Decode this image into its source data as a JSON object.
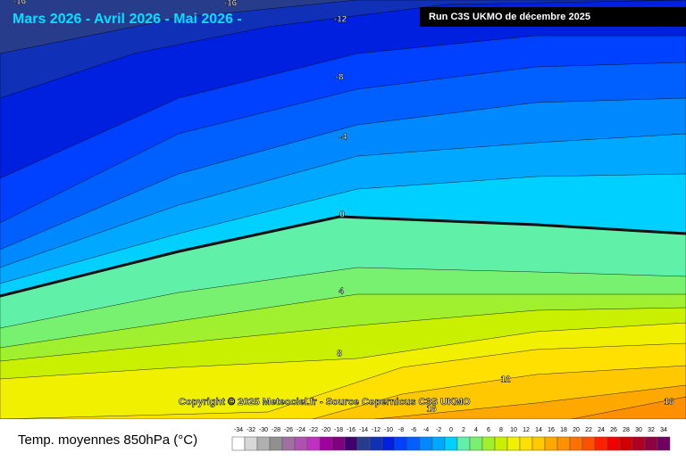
{
  "header": {
    "title": "Mars 2026 - Avril 2026 - Mai 2026 -",
    "run": "Run C3S UKMO de décembre 2025"
  },
  "copyright": "Copyright © 2025 Meteociel.fr - Source Copernicus C3S UKMO",
  "contour_labels": [
    -16,
    -16,
    -12,
    -8,
    -4,
    0,
    4,
    8,
    12,
    16,
    16
  ],
  "legend": {
    "title": "Temp. moyennes 850hPa (°C)",
    "values": [
      -34,
      -32,
      -30,
      -28,
      -26,
      -24,
      -22,
      -20,
      -18,
      -16,
      -14,
      -12,
      -10,
      -8,
      -6,
      -4,
      -2,
      0,
      2,
      4,
      6,
      8,
      10,
      12,
      14,
      16,
      18,
      20,
      22,
      24,
      26,
      28,
      30,
      32,
      34
    ],
    "colors": [
      "#ffffff",
      "#d8d8d8",
      "#b0b0b0",
      "#909090",
      "#a070a0",
      "#b050b0",
      "#c030c0",
      "#a000a0",
      "#800080",
      "#400070",
      "#283c8c",
      "#1030b8",
      "#0020e0",
      "#0040ff",
      "#0060ff",
      "#0088ff",
      "#00a8ff",
      "#00d0ff",
      "#60f0a8",
      "#78f070",
      "#a0f030",
      "#c8f000",
      "#f0f000",
      "#ffe000",
      "#ffc800",
      "#ffa800",
      "#ff9000",
      "#ff7000",
      "#ff5000",
      "#ff2000",
      "#f00000",
      "#d00000",
      "#b00020",
      "#900040",
      "#700060"
    ]
  }
}
